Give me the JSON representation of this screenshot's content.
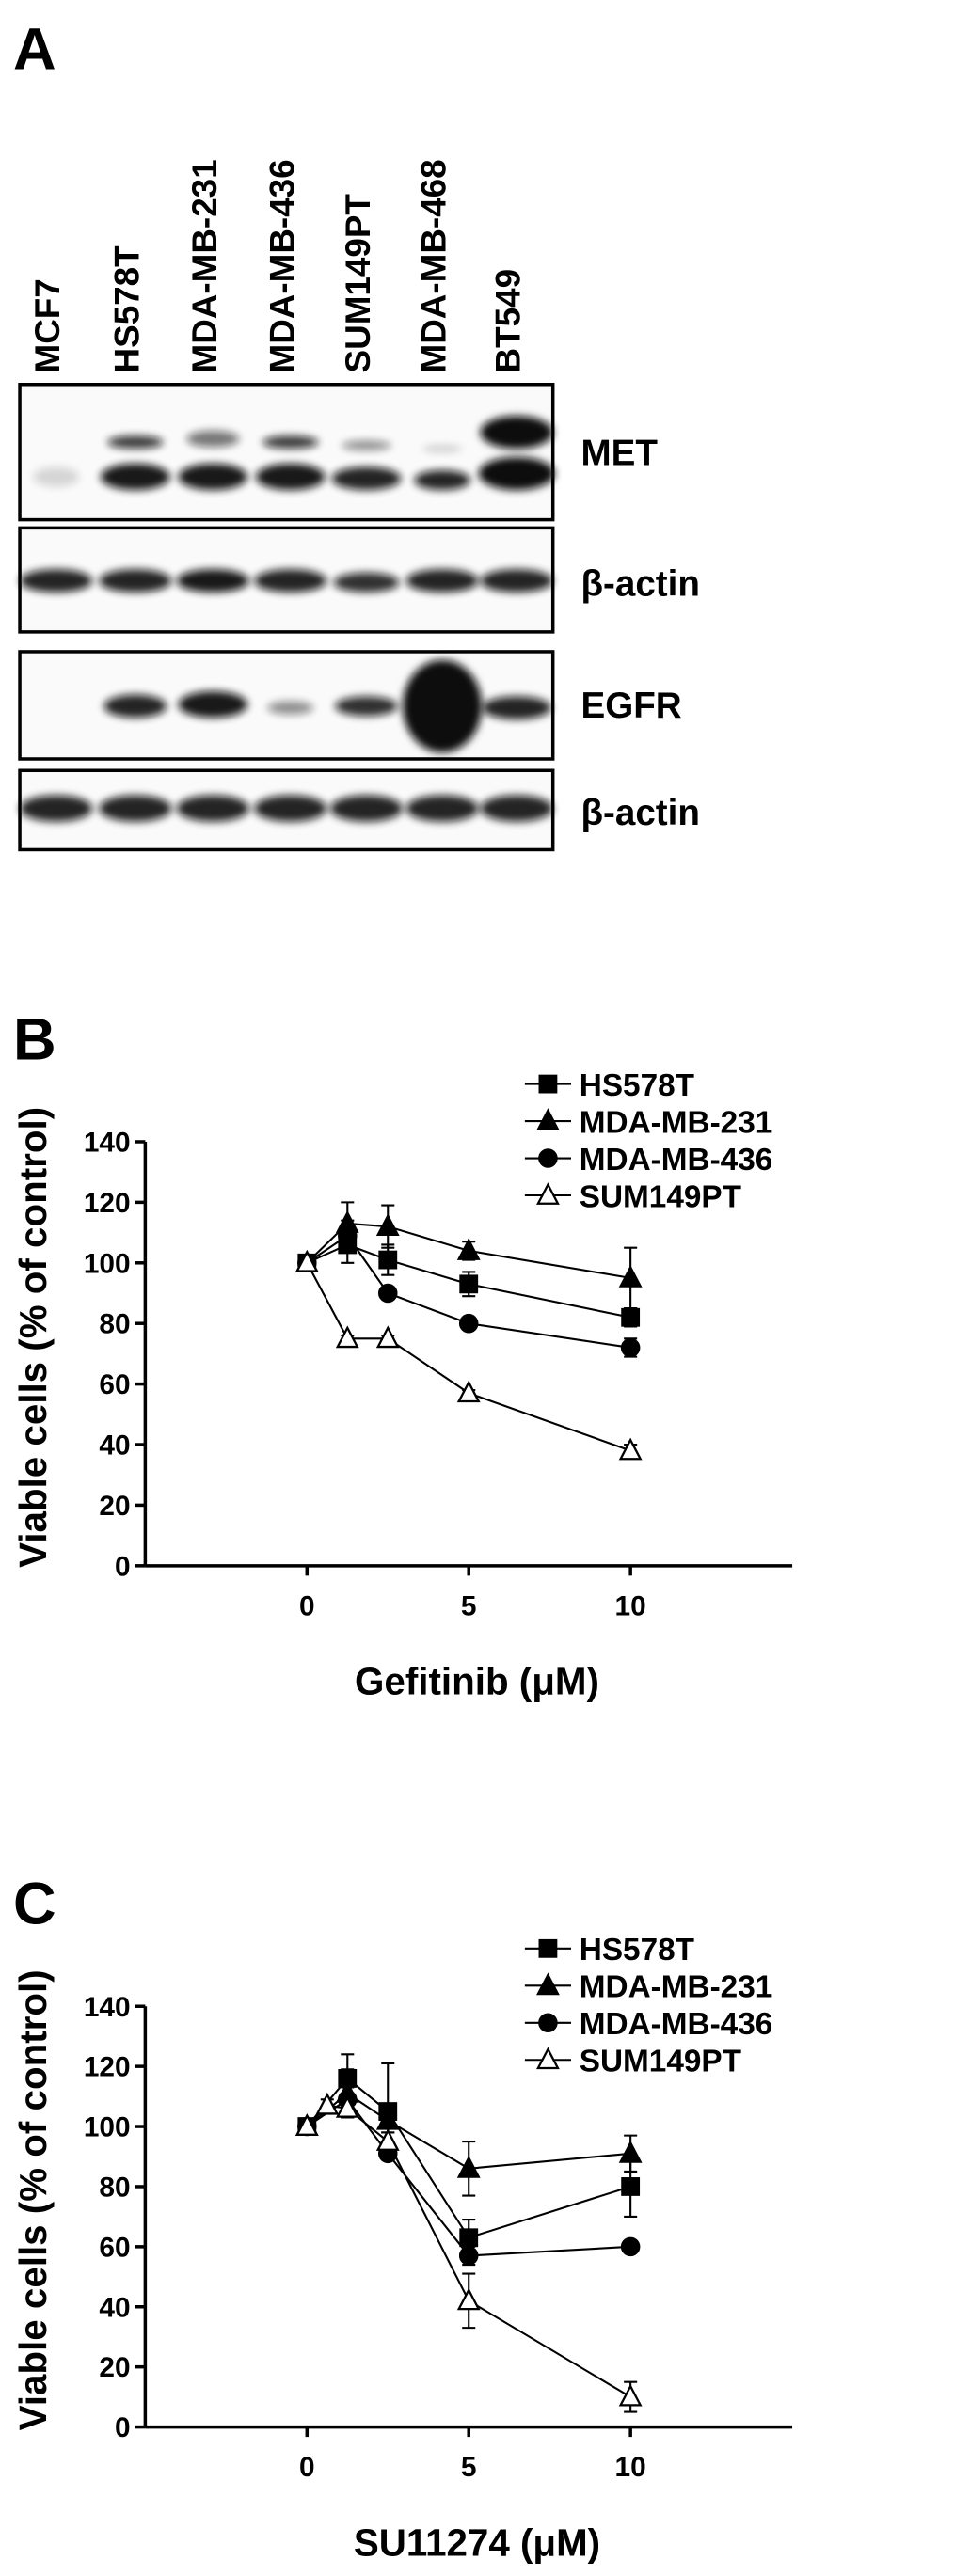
{
  "blot": {
    "panel_label": "A",
    "lanes": [
      "MCF7",
      "HS578T",
      "MDA-MB-231",
      "MDA-MB-436",
      "SUM149PT",
      "MDA-MB-468",
      "BT549"
    ],
    "rows": [
      "MET",
      "β-actin",
      "EGFR",
      "β-actin"
    ]
  },
  "chart_data": [
    {
      "type": "line",
      "panel_label": "B",
      "x_label": "Gefitinib (μM)",
      "y_label": "Viable cells (% of control)",
      "x": [
        0,
        1.25,
        2.5,
        5,
        10
      ],
      "xlim": [
        -5,
        15
      ],
      "xticks": [
        0,
        5,
        10
      ],
      "ylim": [
        0,
        140
      ],
      "yticks": [
        0,
        20,
        40,
        60,
        80,
        100,
        120,
        140
      ],
      "grid": false,
      "legend": "upper right",
      "series": [
        {
          "name": "HS578T",
          "color": "#000000",
          "marker": "square",
          "filled": true,
          "values": [
            100,
            106,
            101,
            93,
            82
          ],
          "errors": [
            0,
            6,
            5,
            4,
            3
          ]
        },
        {
          "name": "MDA-MB-231",
          "color": "#000000",
          "marker": "triangle",
          "filled": true,
          "values": [
            100,
            113,
            112,
            104,
            95
          ],
          "errors": [
            0,
            7,
            7,
            3,
            10
          ]
        },
        {
          "name": "MDA-MB-436",
          "color": "#000000",
          "marker": "circle",
          "filled": true,
          "values": [
            100,
            109,
            90,
            80,
            72
          ],
          "errors": [
            0,
            5,
            2,
            2,
            3
          ]
        },
        {
          "name": "SUM149PT",
          "color": "#000000",
          "marker": "triangle",
          "filled": false,
          "values": [
            100,
            75,
            75,
            57,
            38
          ],
          "errors": [
            0,
            1,
            1,
            1,
            2
          ]
        }
      ]
    },
    {
      "type": "line",
      "panel_label": "C",
      "x_label": "SU11274 (μM)",
      "y_label": "Viable cells (% of control)",
      "xlim": [
        -5,
        15
      ],
      "xticks": [
        0,
        5,
        10
      ],
      "ylim": [
        0,
        140
      ],
      "yticks": [
        0,
        20,
        40,
        60,
        80,
        100,
        120,
        140
      ],
      "grid": false,
      "legend": "upper right",
      "series": [
        {
          "name": "HS578T",
          "color": "#000000",
          "marker": "square",
          "filled": true,
          "x": [
            0,
            1.25,
            2.5,
            5,
            10
          ],
          "values": [
            100,
            116,
            105,
            63,
            80
          ],
          "errors": [
            0,
            8,
            16,
            6,
            10
          ]
        },
        {
          "name": "MDA-MB-231",
          "color": "#000000",
          "marker": "triangle",
          "filled": true,
          "x": [
            0,
            1.25,
            2.5,
            5,
            10
          ],
          "values": [
            100,
            111,
            102,
            86,
            91
          ],
          "errors": [
            0,
            8,
            4,
            9,
            6
          ]
        },
        {
          "name": "MDA-MB-436",
          "color": "#000000",
          "marker": "circle",
          "filled": true,
          "x": [
            0,
            1.25,
            2.5,
            5,
            10
          ],
          "values": [
            100,
            109,
            91,
            57,
            60
          ],
          "errors": [
            0,
            4,
            2,
            3,
            2
          ]
        },
        {
          "name": "SUM149PT",
          "color": "#000000",
          "marker": "triangle",
          "filled": false,
          "x": [
            0,
            0.625,
            1.25,
            2.5,
            5,
            10
          ],
          "values": [
            100,
            107,
            106,
            95,
            42,
            10
          ],
          "errors": [
            0,
            2,
            3,
            3,
            9,
            5
          ]
        }
      ]
    }
  ]
}
